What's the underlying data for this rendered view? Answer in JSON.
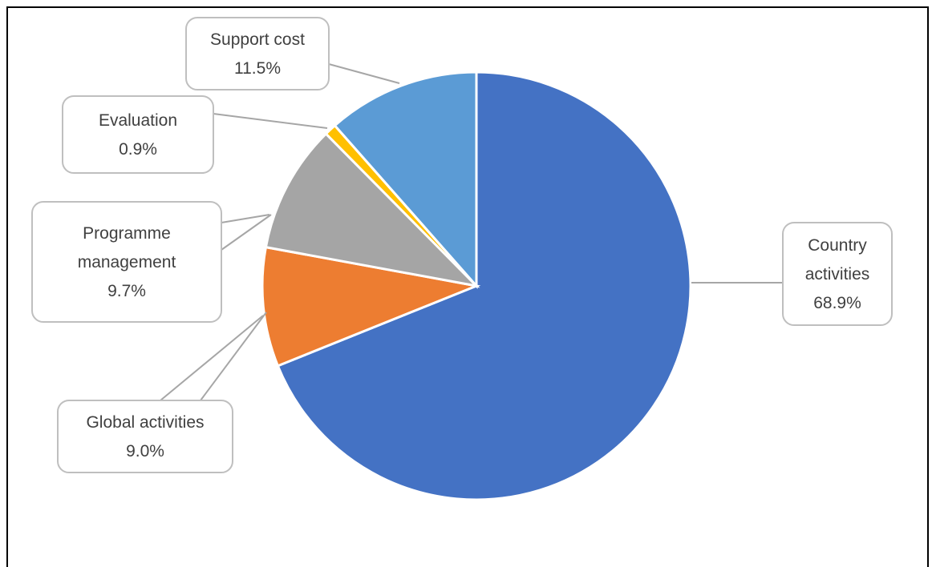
{
  "chart_data": {
    "type": "pie",
    "start_angle_deg": 0,
    "direction": "clockwise",
    "slices": [
      {
        "name": "Country activities",
        "value": 68.9,
        "label": "68.9%",
        "color": "#4472C4",
        "label_lines": [
          "Country",
          "activities",
          "68.9%"
        ]
      },
      {
        "name": "Global activities",
        "value": 9.0,
        "label": "9.0%",
        "color": "#ED7D31",
        "label_lines": [
          "Global activities",
          "9.0%"
        ]
      },
      {
        "name": "Programme management",
        "value": 9.7,
        "label": "9.7%",
        "color": "#A5A5A5",
        "label_lines": [
          "Programme",
          "management",
          "9.7%"
        ]
      },
      {
        "name": "Evaluation",
        "value": 0.9,
        "label": "0.9%",
        "color": "#FFC000",
        "label_lines": [
          "Evaluation",
          "0.9%"
        ]
      },
      {
        "name": "Support cost",
        "value": 11.5,
        "label": "11.5%",
        "color": "#5B9BD5",
        "label_lines": [
          "Support cost",
          "11.5%"
        ]
      }
    ]
  }
}
